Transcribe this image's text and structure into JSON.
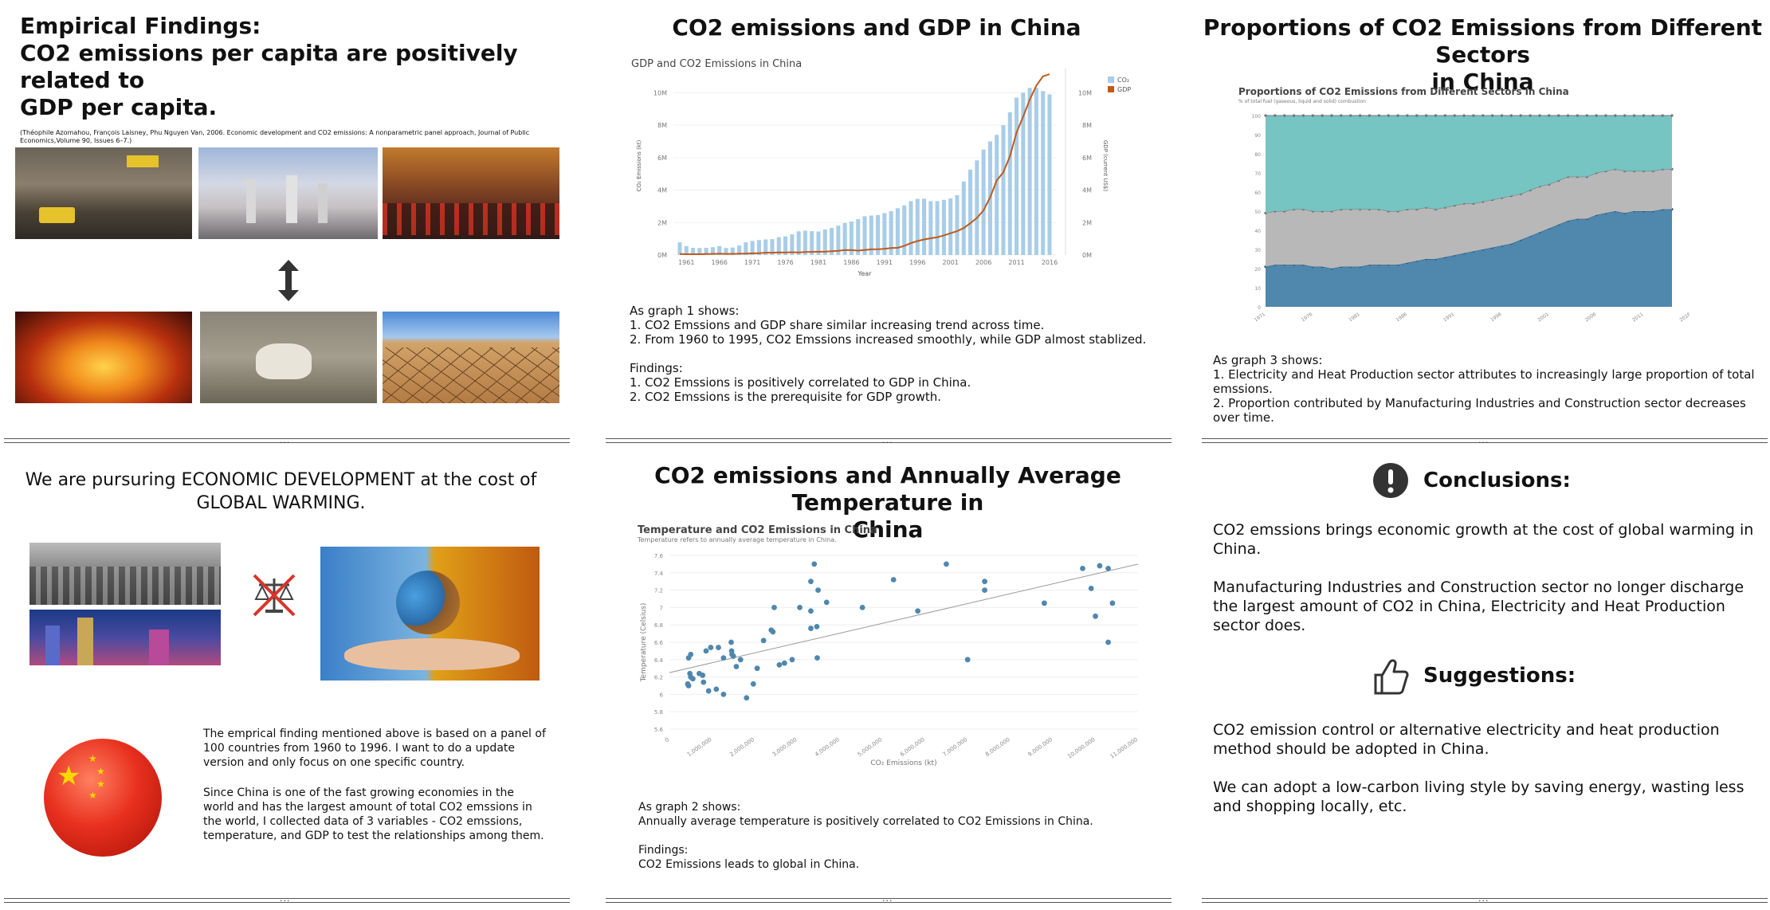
{
  "panels": {
    "p1": {
      "title_lines": [
        "Empirical Findings:",
        "CO2 emissions per capita are positively related to",
        "GDP per capita."
      ],
      "citation": "(Théophile Azomahou, François Laisney, Phu Nguyen Van, 2006. Economic development and CO2 emissions: A nonparametric panel approach, Journal of Public Economics,Volume 90, Issues 6–7.)"
    },
    "p2": {
      "title": "CO2 emissions and GDP in China",
      "notes": [
        "As graph 1 shows:",
        "1. CO2 Emssions and GDP share similar increasing trend across time.",
        "2. From 1960 to 1995, CO2 Emssions increased smoothly, while GDP almost stablized.",
        "",
        "Findings:",
        "1. CO2 Emssions is positively correlated to GDP in China.",
        "2. CO2 Emssions is the prerequisite for GDP growth."
      ]
    },
    "p3": {
      "title_lines": [
        "Proportions of CO2 Emissions from Different Sectors",
        "in China"
      ],
      "notes": [
        "As graph 3 shows:",
        "1. Electricity and Heat Production sector attributes to increasingly large proportion of total emssions.",
        "2. Proportion contributed by Manufacturing Industries and Construction sector decreases over time."
      ]
    },
    "p4": {
      "title_lines": [
        "We are pursuring ECONOMIC DEVELOPMENT at the cost of",
        "GLOBAL WARMING."
      ],
      "para1": "The emprical finding mentioned above is based on a panel of 100 countries from 1960 to 1996. I want to do a update version and only focus on one specific country.",
      "para2": "Since China is one of the fast growing economies in the world and has the largest amount of total CO2 emssions in the world, I collected data of 3 variables - CO2 emssions, temperature, and GDP to test the relationships among them."
    },
    "p5": {
      "title_lines": [
        "CO2 emissions and Annually Average Temperature in",
        "China"
      ],
      "notes": [
        "As graph 2 shows:",
        "Annually average temperature is positively correlated to CO2 Emissions in China.",
        "",
        "Findings:",
        "CO2 Emissions leads to global in China."
      ]
    },
    "p6": {
      "conclusions_title": "Conclusions:",
      "conclusions": [
        "CO2 emssions brings economic growth at the cost of global warming in China.",
        "Manufacturing Industries and Construction sector no longer discharge the largest amount of CO2 in China, Electricity and Heat Production sector does."
      ],
      "suggestions_title": "Suggestions:",
      "suggestions": [
        "CO2 emission control or alternative electricity and heat production method should be adopted in China.",
        "We can adopt a low-carbon living style by saving energy, wasting less and shopping locally, etc."
      ]
    }
  },
  "ellipsis": "...",
  "icons": {
    "arrow": "up-down-arrow-icon",
    "scale": "crossed-scale-icon",
    "alert": "exclamation-circle-icon",
    "thumb": "thumbs-up-icon"
  },
  "colors": {
    "bar": "#a8cde8",
    "gdp": "#c05a1c",
    "teal": "#6fc2bf",
    "grey": "#b8b8b8",
    "blue": "#4f87ad"
  },
  "chart_data": [
    {
      "type": "bar",
      "title": "GDP and CO2 Emissions in China",
      "xlabel": "Year",
      "ylabel": "CO₂ Emissions (kt)",
      "y2label": "GDP (current US$)",
      "legend": [
        "CO₂ Emissions",
        "GDP"
      ],
      "x_ticks": [
        "1961",
        "1966",
        "1971",
        "1976",
        "1981",
        "1986",
        "1991",
        "1996",
        "2001",
        "2006",
        "2011",
        "2016"
      ],
      "y_ticks": [
        "0M",
        "2M",
        "4M",
        "6M",
        "8M",
        "10M"
      ],
      "y2_ticks": [
        "0M",
        "2M",
        "4M",
        "6M",
        "8M",
        "10M"
      ],
      "years": [
        1960,
        1961,
        1962,
        1963,
        1964,
        1965,
        1966,
        1967,
        1968,
        1969,
        1970,
        1971,
        1972,
        1973,
        1974,
        1975,
        1976,
        1977,
        1978,
        1979,
        1980,
        1981,
        1982,
        1983,
        1984,
        1985,
        1986,
        1987,
        1988,
        1989,
        1990,
        1991,
        1992,
        1993,
        1994,
        1995,
        1996,
        1997,
        1998,
        1999,
        2000,
        2001,
        2002,
        2003,
        2004,
        2005,
        2006,
        2007,
        2008,
        2009,
        2010,
        2011,
        2012,
        2013,
        2014,
        2015,
        2016
      ],
      "co2": [
        0.78,
        0.55,
        0.44,
        0.43,
        0.44,
        0.48,
        0.55,
        0.43,
        0.46,
        0.58,
        0.78,
        0.87,
        0.92,
        0.96,
        0.98,
        1.1,
        1.15,
        1.27,
        1.46,
        1.5,
        1.47,
        1.45,
        1.57,
        1.67,
        1.81,
        1.97,
        2.06,
        2.21,
        2.39,
        2.43,
        2.46,
        2.58,
        2.7,
        2.88,
        3.06,
        3.32,
        3.46,
        3.47,
        3.32,
        3.32,
        3.4,
        3.49,
        3.69,
        4.53,
        5.26,
        5.83,
        6.5,
        7.0,
        7.4,
        8.0,
        8.8,
        9.7,
        10.0,
        10.3,
        10.3,
        10.1,
        9.9
      ],
      "gdp": [
        0.06,
        0.05,
        0.05,
        0.05,
        0.06,
        0.07,
        0.08,
        0.07,
        0.07,
        0.08,
        0.09,
        0.1,
        0.11,
        0.14,
        0.14,
        0.16,
        0.15,
        0.17,
        0.15,
        0.18,
        0.19,
        0.2,
        0.2,
        0.23,
        0.26,
        0.31,
        0.3,
        0.27,
        0.31,
        0.35,
        0.36,
        0.38,
        0.43,
        0.44,
        0.56,
        0.73,
        0.86,
        0.96,
        1.03,
        1.09,
        1.21,
        1.34,
        1.47,
        1.66,
        1.96,
        2.29,
        2.75,
        3.55,
        4.59,
        5.1,
        6.09,
        7.55,
        8.53,
        9.57,
        10.44,
        11.01,
        11.14
      ]
    },
    {
      "type": "scatter",
      "title": "Temperature and CO2 Emissions in China",
      "subtitle": "Temperature refers to annually average temperature in China.",
      "xlabel": "CO₂ Emissions (kt)",
      "ylabel": "Temperature (Celsius)",
      "x_ticks": [
        "0",
        "1,000,000",
        "2,000,000",
        "3,000,000",
        "4,000,000",
        "5,000,000",
        "6,000,000",
        "7,000,000",
        "8,000,000",
        "9,000,000",
        "10,000,000",
        "11,000,000"
      ],
      "y_ticks": [
        "5.6",
        "5.8",
        "6",
        "6.2",
        "6.4",
        "6.6",
        "6.8",
        "7",
        "7.2",
        "7.4",
        "7.6"
      ],
      "points": [
        [
          0.45,
          6.42
        ],
        [
          0.5,
          6.46
        ],
        [
          0.43,
          6.12
        ],
        [
          0.45,
          6.1
        ],
        [
          0.55,
          6.18
        ],
        [
          0.5,
          6.2
        ],
        [
          0.48,
          6.24
        ],
        [
          0.7,
          6.24
        ],
        [
          0.8,
          6.14
        ],
        [
          0.78,
          6.22
        ],
        [
          0.86,
          6.5
        ],
        [
          0.92,
          6.04
        ],
        [
          0.97,
          6.54
        ],
        [
          1.1,
          6.06
        ],
        [
          1.15,
          6.54
        ],
        [
          1.27,
          6.0
        ],
        [
          1.27,
          6.42
        ],
        [
          1.46,
          6.5
        ],
        [
          1.5,
          6.44
        ],
        [
          1.47,
          6.46
        ],
        [
          1.45,
          6.6
        ],
        [
          1.57,
          6.32
        ],
        [
          1.67,
          6.4
        ],
        [
          1.81,
          5.96
        ],
        [
          1.97,
          6.12
        ],
        [
          2.06,
          6.3
        ],
        [
          2.21,
          6.62
        ],
        [
          2.39,
          6.74
        ],
        [
          2.43,
          6.72
        ],
        [
          2.46,
          7.0
        ],
        [
          2.58,
          6.34
        ],
        [
          2.7,
          6.36
        ],
        [
          2.88,
          6.4
        ],
        [
          3.06,
          7.0
        ],
        [
          3.32,
          6.76
        ],
        [
          3.46,
          6.78
        ],
        [
          3.47,
          6.42
        ],
        [
          3.32,
          6.96
        ],
        [
          3.32,
          7.3
        ],
        [
          3.4,
          7.5
        ],
        [
          3.49,
          7.2
        ],
        [
          3.69,
          7.06
        ],
        [
          4.53,
          7.0
        ],
        [
          5.26,
          7.32
        ],
        [
          5.83,
          6.96
        ],
        [
          6.5,
          7.5
        ],
        [
          7.0,
          6.4
        ],
        [
          7.4,
          7.3
        ],
        [
          7.4,
          7.2
        ],
        [
          8.8,
          7.05
        ],
        [
          9.7,
          7.45
        ],
        [
          10.0,
          6.9
        ],
        [
          10.3,
          7.45
        ],
        [
          10.3,
          6.6
        ],
        [
          10.1,
          7.48
        ],
        [
          9.9,
          7.22
        ],
        [
          10.4,
          7.05
        ]
      ],
      "trend": [
        [
          0,
          6.25
        ],
        [
          11,
          7.5
        ]
      ]
    },
    {
      "type": "area",
      "title": "Proportions of CO2 Emissions from Different Sectors in China",
      "subtitle": "% of total fuel (gaseous, liquid and solid) combustion",
      "y_ticks": [
        "0",
        "10",
        "20",
        "30",
        "40",
        "50",
        "60",
        "70",
        "80",
        "90",
        "100"
      ],
      "x_ticks": [
        "1971",
        "1976",
        "1981",
        "1986",
        "1991",
        "1996",
        "2001",
        "2006",
        "2011",
        "2016"
      ],
      "years": [
        1971,
        1972,
        1973,
        1974,
        1975,
        1976,
        1977,
        1978,
        1979,
        1980,
        1981,
        1982,
        1983,
        1984,
        1985,
        1986,
        1987,
        1988,
        1989,
        1990,
        1991,
        1992,
        1993,
        1994,
        1995,
        1996,
        1997,
        1998,
        1999,
        2000,
        2001,
        2002,
        2003,
        2004,
        2005,
        2006,
        2007,
        2008,
        2009,
        2010,
        2011,
        2012,
        2013,
        2014
      ],
      "series": [
        {
          "values": [
            21,
            22,
            22,
            22,
            22,
            21,
            21,
            20,
            21,
            21,
            21,
            22,
            22,
            22,
            22,
            23,
            24,
            25,
            25,
            26,
            27,
            28,
            29,
            30,
            31,
            32,
            33,
            35,
            37,
            39,
            41,
            43,
            45,
            46,
            46,
            48,
            49,
            50,
            49,
            50,
            50,
            50,
            51,
            51
          ]
        },
        {
          "values": [
            28,
            28,
            28,
            29,
            29,
            29,
            29,
            30,
            30,
            30,
            30,
            29,
            29,
            28,
            28,
            28,
            27,
            27,
            26,
            26,
            26,
            26,
            25,
            25,
            25,
            25,
            25,
            24,
            24,
            24,
            23,
            23,
            23,
            22,
            22,
            22,
            22,
            22,
            22,
            21,
            21,
            21,
            21,
            21
          ]
        },
        {
          "values": [
            51,
            50,
            50,
            49,
            49,
            50,
            50,
            50,
            49,
            49,
            49,
            49,
            49,
            50,
            50,
            49,
            49,
            48,
            49,
            48,
            47,
            46,
            46,
            45,
            44,
            43,
            42,
            41,
            39,
            37,
            36,
            34,
            32,
            32,
            32,
            30,
            29,
            28,
            29,
            29,
            29,
            29,
            28,
            28
          ]
        }
      ]
    }
  ]
}
